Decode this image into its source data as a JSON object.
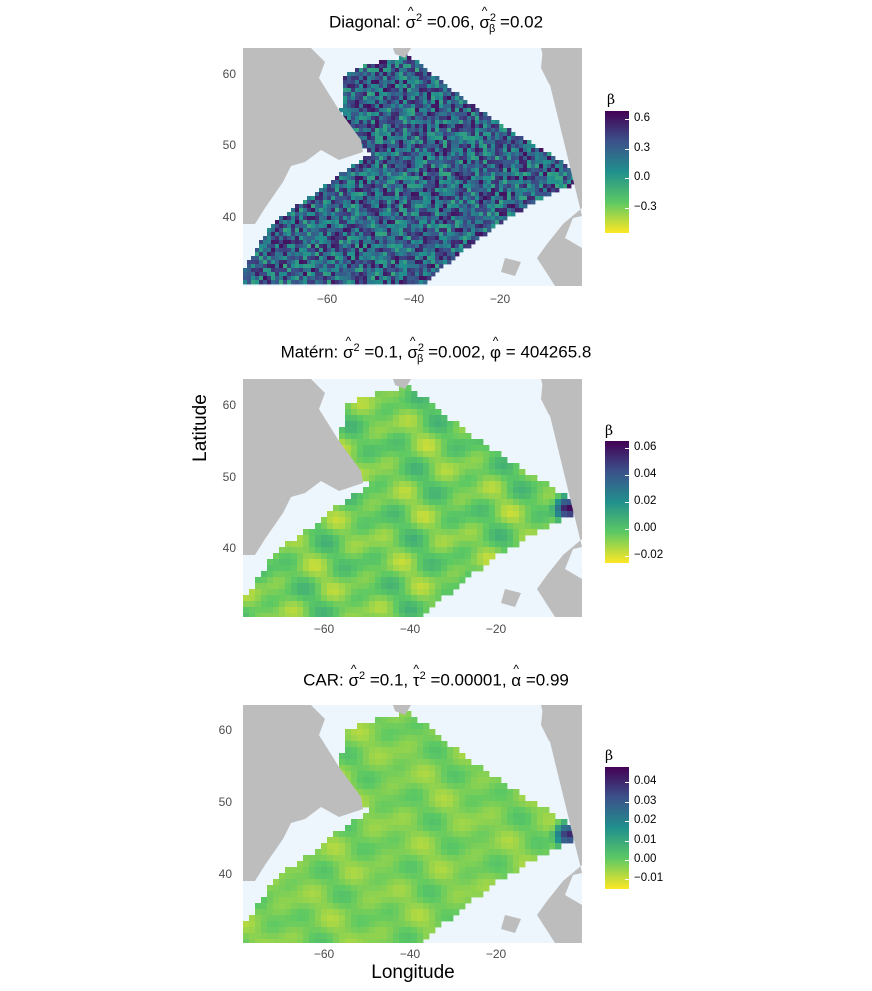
{
  "colors": {
    "sea": "#eef6fd",
    "land": "#bdbdbd",
    "viridis": [
      "#440154",
      "#3b528b",
      "#21908d",
      "#5dc963",
      "#fde725"
    ]
  },
  "axis": {
    "xlabel": "Longitude",
    "ylabel": "Latitude"
  },
  "chart_data": [
    {
      "type": "heatmap",
      "title": "Diagonal: σ̂² =0.06, σ̂β² =0.02",
      "title_parts": {
        "label": "Diagonal:",
        "v1": "=0.06,",
        "v2": "=0.02"
      },
      "x_ticks": [
        "−60",
        "−40",
        "−20"
      ],
      "y_ticks": [
        "60",
        "50",
        "40"
      ],
      "legend": {
        "title": "β",
        "ticks": [
          "0.6",
          "0.3",
          "0.0",
          "−0.3"
        ],
        "range": [
          -0.55,
          0.68
        ]
      },
      "pattern": "noise",
      "base_value": 0.35
    },
    {
      "type": "heatmap",
      "title": "Matérn: σ̂² =0.1, σ̂β² =0.002, φ̂ = 404265.8",
      "title_parts": {
        "label": "Matérn:",
        "v1": "=0.1,",
        "v2": "=0.002,",
        "v3": "= 404265.8"
      },
      "x_ticks": [
        "−60",
        "−40",
        "−20"
      ],
      "y_ticks": [
        "60",
        "50",
        "40"
      ],
      "legend": {
        "title": "β",
        "ticks": [
          "0.06",
          "0.04",
          "0.02",
          "0.00",
          "−0.02"
        ],
        "range": [
          -0.025,
          0.065
        ]
      },
      "pattern": "smooth",
      "base_value": 0.78
    },
    {
      "type": "heatmap",
      "title": "CAR: σ̂² =0.1, τ̂² =0.00001, α̂ =0.99",
      "title_parts": {
        "label": "CAR:",
        "v1": "=0.1,",
        "v2": "=0.00001,",
        "v3": "=0.99"
      },
      "x_ticks": [
        "−60",
        "−40",
        "−20"
      ],
      "y_ticks": [
        "60",
        "50",
        "40"
      ],
      "legend": {
        "title": "β",
        "ticks": [
          "0.04",
          "0.03",
          "0.02",
          "0.01",
          "0.00",
          "−0.01"
        ],
        "range": [
          -0.015,
          0.048
        ]
      },
      "pattern": "smooth-faint",
      "base_value": 0.8
    }
  ]
}
